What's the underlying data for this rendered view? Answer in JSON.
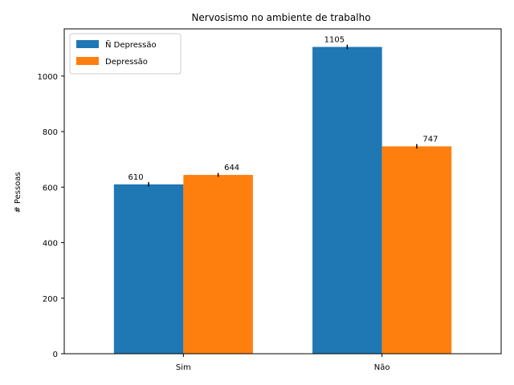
{
  "chart_data": {
    "type": "bar",
    "title": "Nervosismo no ambiente de trabalho",
    "xlabel": "",
    "ylabel": "# Pessoas",
    "categories": [
      "Sim",
      "Não"
    ],
    "series": [
      {
        "name": "Ñ Depressão",
        "values": [
          610,
          1105
        ],
        "error": [
          8,
          8
        ],
        "labels": [
          "610",
          "1105"
        ]
      },
      {
        "name": "Depressão",
        "values": [
          644,
          747
        ],
        "error": [
          7,
          8
        ],
        "labels": [
          "644",
          "747"
        ]
      }
    ],
    "ylim": [
      0,
      1170
    ],
    "yticks": [
      0,
      200,
      400,
      600,
      800,
      1000
    ],
    "grid": false,
    "legend_position": "top-left",
    "colors": [
      "#1f77b4",
      "#ff7f0e"
    ]
  }
}
